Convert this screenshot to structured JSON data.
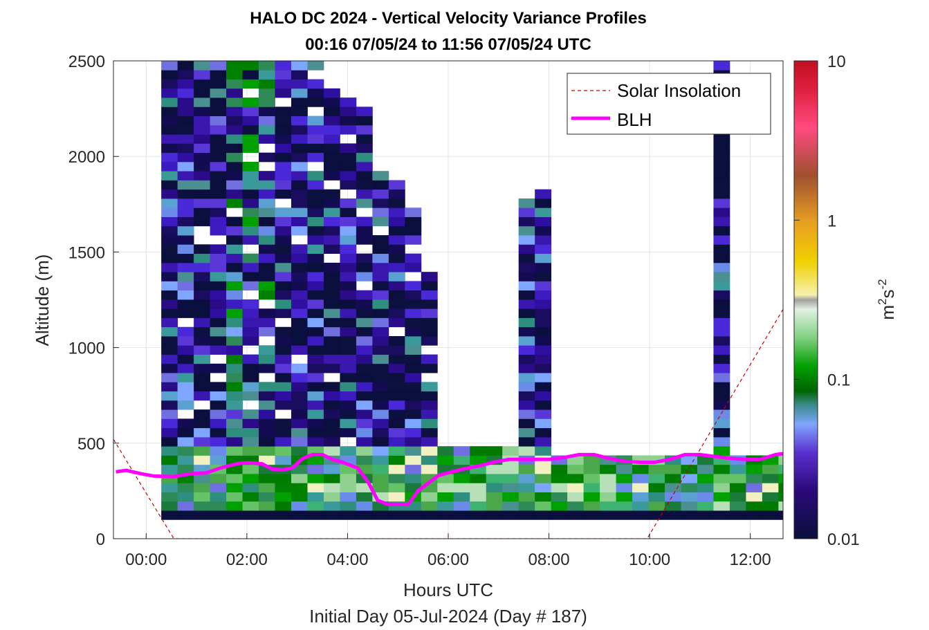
{
  "chart_data": {
    "type": "heatmap",
    "title_line1": "HALO DC 2024 - Vertical Velocity Variance Profiles",
    "title_line2": "00:16 07/05/24 to 11:56 07/05/24  UTC",
    "xlabel": "Hours UTC",
    "xlabel_sub": "Initial Day 05-Jul-2024 (Day # 187)",
    "ylabel": "Altitude (m)",
    "xlim": [
      -0.65,
      12.65
    ],
    "ylim": [
      0,
      2500
    ],
    "x_ticks": [
      0,
      2,
      4,
      6,
      8,
      10,
      12
    ],
    "x_tick_labels": [
      "00:00",
      "02:00",
      "04:00",
      "06:00",
      "08:00",
      "10:00",
      "12:00"
    ],
    "y_ticks": [
      0,
      500,
      1000,
      1500,
      2000,
      2500
    ],
    "y_tick_labels": [
      "0",
      "500",
      "1000",
      "1500",
      "2000",
      "2500"
    ],
    "grid": true,
    "colorbar": {
      "label": "m²s⁻²",
      "scale": "log",
      "range": [
        0.01,
        10
      ],
      "tick_values": [
        0.01,
        0.1,
        1,
        10
      ],
      "tick_labels": [
        "0.01",
        "0.1",
        "1",
        "10"
      ]
    },
    "legend": {
      "placement": "top-right",
      "entries": [
        {
          "label": "Solar Insolation",
          "color": "#cc0000",
          "style": "dashed"
        },
        {
          "label": "BLH",
          "color": "#ff00ff",
          "style": "solid"
        }
      ]
    },
    "blh_series": {
      "name": "BLH",
      "x": [
        -0.6,
        -0.4,
        -0.1,
        0.15,
        0.55,
        0.9,
        1.2,
        1.5,
        1.8,
        2.0,
        2.3,
        2.5,
        2.7,
        2.9,
        3.1,
        3.3,
        3.5,
        3.7,
        3.9,
        4.2,
        4.4,
        4.6,
        4.8,
        5.0,
        5.2,
        5.4,
        5.6,
        5.8,
        6.0,
        6.3,
        6.6,
        6.9,
        7.2,
        7.5,
        7.8,
        8.0,
        8.3,
        8.6,
        8.9,
        9.2,
        9.5,
        9.8,
        10.1,
        10.4,
        10.7,
        11.0,
        11.3,
        11.6,
        11.9,
        12.2,
        12.5,
        12.65
      ],
      "y": [
        350,
        358,
        340,
        328,
        325,
        340,
        345,
        372,
        392,
        398,
        392,
        365,
        360,
        370,
        418,
        440,
        440,
        415,
        400,
        370,
        300,
        200,
        180,
        180,
        178,
        250,
        290,
        330,
        345,
        365,
        380,
        400,
        415,
        415,
        415,
        415,
        425,
        440,
        440,
        420,
        405,
        400,
        400,
        415,
        440,
        440,
        430,
        420,
        415,
        415,
        440,
        445
      ]
    },
    "solar_series": {
      "name": "Solar Insolation",
      "x": [
        -0.65,
        0.55,
        9.95,
        12.65
      ],
      "y": [
        520,
        0,
        0,
        1200
      ]
    },
    "variance_grid": {
      "x_start": 0.3,
      "dx": 0.3226,
      "y_start": 100,
      "dy": 48,
      "columns": 40,
      "rows": 50
    }
  }
}
